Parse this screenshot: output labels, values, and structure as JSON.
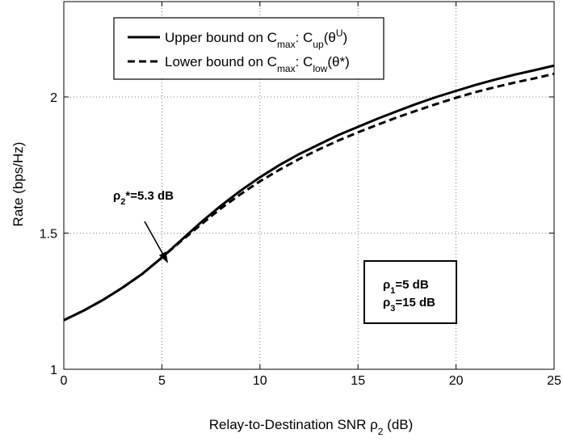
{
  "chart_data": {
    "type": "line",
    "xlabel": "Relay-to-Destination SNR ρ₂ (dB)",
    "xlabel_parts": {
      "main": "Relay-to-Destination SNR ρ",
      "sub": "2",
      "tail": " (dB)"
    },
    "ylabel": "Rate (bps/Hz)",
    "xlim": [
      0,
      25
    ],
    "ylim": [
      1,
      2.35
    ],
    "x_ticks": [
      0,
      5,
      10,
      15,
      20,
      25
    ],
    "y_ticks": [
      1,
      1.5,
      2
    ],
    "x_tick_labels": [
      "0",
      "5",
      "10",
      "15",
      "20",
      "25"
    ],
    "y_tick_labels": [
      "1",
      "1.5",
      "2"
    ],
    "grid": true,
    "legend_position": "top-left",
    "series": [
      {
        "name": "Upper bound on C_max: C_up(θ^U)",
        "style": "solid",
        "x": [
          0,
          1,
          2,
          3,
          4,
          5,
          6,
          7,
          8,
          9,
          10,
          11,
          12,
          13,
          14,
          15,
          16,
          17,
          18,
          19,
          20,
          21,
          22,
          23,
          24,
          25
        ],
        "y": [
          1.18,
          1.215,
          1.255,
          1.3,
          1.35,
          1.41,
          1.475,
          1.54,
          1.6,
          1.655,
          1.705,
          1.75,
          1.79,
          1.825,
          1.86,
          1.89,
          1.92,
          1.948,
          1.975,
          2.0,
          2.022,
          2.044,
          2.064,
          2.082,
          2.098,
          2.115
        ]
      },
      {
        "name": "Lower bound on C_max: C_low(θ*)",
        "style": "dashed",
        "x": [
          0,
          1,
          2,
          3,
          4,
          5,
          6,
          7,
          8,
          9,
          10,
          11,
          12,
          13,
          14,
          15,
          16,
          17,
          18,
          19,
          20,
          21,
          22,
          23,
          24,
          25
        ],
        "y": [
          1.18,
          1.215,
          1.255,
          1.3,
          1.35,
          1.41,
          1.472,
          1.532,
          1.59,
          1.642,
          1.69,
          1.733,
          1.772,
          1.807,
          1.84,
          1.87,
          1.898,
          1.925,
          1.95,
          1.974,
          1.997,
          2.018,
          2.036,
          2.053,
          2.068,
          2.085
        ]
      }
    ],
    "legend": [
      {
        "style": "solid",
        "prefix": "Upper bound on C",
        "sub1": "max",
        "mid": ": C",
        "sub2": "up",
        "open": "(θ",
        "sup": "U",
        "close": ")"
      },
      {
        "style": "dashed",
        "prefix": "Lower bound on C",
        "sub1": "max",
        "mid": ": C",
        "sub2": "low",
        "open": "(θ*)",
        "sup": "",
        "close": ""
      }
    ],
    "annotation": {
      "text_main": "ρ",
      "text_sub": "2",
      "text_tail": "*=5.3 dB",
      "x": 5.3,
      "y": 1.45
    },
    "param_box": {
      "lines": [
        {
          "main": "ρ",
          "sub": "1",
          "tail": "=5 dB"
        },
        {
          "main": "ρ",
          "sub": "3",
          "tail": "=15 dB"
        }
      ]
    }
  }
}
